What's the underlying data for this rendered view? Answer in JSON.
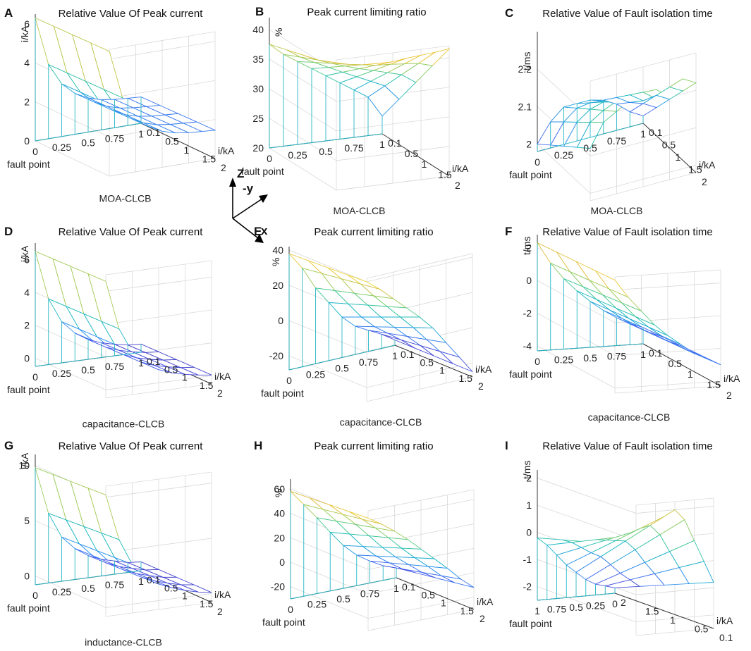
{
  "figure": {
    "legend_axes": {
      "z": "Z",
      "y": "-y",
      "x": "x"
    }
  },
  "chart_data": [
    {
      "id": "A",
      "type": "surface",
      "title": "Relative Value Of Peak current",
      "xlabel": "MOA-CLCB",
      "front_label": "fault point",
      "side_label": "i/kA",
      "zlabel": "i/kA",
      "x_ticks": [
        "0",
        "0.25",
        "0.5",
        "0.75",
        "1"
      ],
      "y_ticks": [
        "2",
        "1.5",
        "1",
        "0.5",
        "0.1"
      ],
      "z_ticks": [
        "0",
        "2",
        "4",
        "6"
      ],
      "z_range": [
        0,
        6.5
      ],
      "fault_point": [
        0,
        0.125,
        0.25,
        0.375,
        0.5,
        0.625,
        0.75,
        0.875,
        1
      ],
      "current": [
        0.1,
        0.6,
        1.1,
        1.6,
        2
      ],
      "front_profile": [
        6.3,
        3.8,
        2.7,
        2.1,
        1.75,
        1.55,
        1.45,
        1.4,
        1.35
      ],
      "back_profile": [
        6.4,
        3.9,
        2.8,
        2.2,
        1.85,
        1.65,
        1.55,
        1.5,
        1.45
      ]
    },
    {
      "id": "B",
      "type": "surface",
      "title": "Peak current limiting ratio",
      "xlabel": "MOA-CLCB",
      "front_label": "fault point",
      "side_label": "i/kA",
      "zlabel": "%",
      "x_ticks": [
        "0",
        "0.25",
        "0.5",
        "0.75",
        "1"
      ],
      "y_ticks": [
        "2",
        "1.5",
        "1",
        "0.5",
        "0.1"
      ],
      "z_ticks": [
        "20",
        "25",
        "30",
        "35",
        "40"
      ],
      "z_range": [
        20,
        42
      ],
      "fault_point": [
        0,
        0.125,
        0.25,
        0.375,
        0.5,
        0.625,
        0.75,
        0.875,
        1
      ],
      "current": [
        0.1,
        0.6,
        1.1,
        1.6,
        2
      ],
      "front_profile": [
        37.5,
        35.5,
        34,
        32.5,
        31,
        29.5,
        28,
        26.5,
        23
      ],
      "back_profile": [
        41,
        40.8,
        40.5,
        40.5,
        40.5,
        40.8,
        41,
        41.2,
        41.5
      ]
    },
    {
      "id": "C",
      "type": "surface",
      "title": "Relative Value of Fault isolation time",
      "xlabel": "MOA-CLCB",
      "front_label": "fault point",
      "side_label": "i/kA",
      "zlabel": "t/ms",
      "x_ticks": [
        "0",
        "0.25",
        "0.5",
        "0.75",
        "1"
      ],
      "y_ticks": [
        "2",
        "1.5",
        "1",
        "0.5",
        "0.1"
      ],
      "z_ticks": [
        "2",
        "2.1",
        "2.2"
      ],
      "z_range": [
        1.98,
        2.3
      ],
      "fault_point": [
        0,
        0.125,
        0.25,
        0.375,
        0.5,
        0.625,
        0.75,
        0.875,
        1
      ],
      "current": [
        0.1,
        0.6,
        1.1,
        1.6,
        2
      ],
      "front_profile": [
        2.0,
        2.05,
        2.08,
        2.08,
        2.08,
        2.07,
        2.05,
        2.02,
        2.0
      ],
      "back_profile": [
        2.12,
        2.18,
        2.2,
        2.22,
        2.2,
        2.23,
        2.2,
        2.24,
        2.22
      ]
    },
    {
      "id": "D",
      "type": "surface",
      "title": "Relative Value Of Peak current",
      "xlabel": "capacitance-CLCB",
      "front_label": "fault point",
      "side_label": "i/kA",
      "zlabel": "i/kA",
      "x_ticks": [
        "0",
        "0.25",
        "0.5",
        "0.75",
        "1"
      ],
      "y_ticks": [
        "2",
        "1.5",
        "1",
        "0.5",
        "0.1"
      ],
      "z_ticks": [
        "0",
        "2",
        "4",
        "6"
      ],
      "z_range": [
        -0.5,
        7
      ],
      "fault_point": [
        0,
        0.125,
        0.25,
        0.375,
        0.5,
        0.625,
        0.75,
        0.875,
        1
      ],
      "current": [
        0.1,
        0.6,
        1.1,
        1.6,
        2
      ],
      "front_profile": [
        6.5,
        3.5,
        2.0,
        1.2,
        0.7,
        0.4,
        0.2,
        0.05,
        0
      ],
      "back_profile": [
        6.6,
        3.6,
        2.1,
        1.3,
        0.8,
        0.5,
        0.3,
        0.15,
        0.05
      ]
    },
    {
      "id": "E",
      "type": "surface",
      "title": "Peak current limiting ratio",
      "xlabel": "capacitance-CLCB",
      "front_label": "fault point",
      "side_label": "i/kA",
      "zlabel": "%",
      "x_ticks": [
        "0",
        "0.25",
        "0.5",
        "0.75",
        "1"
      ],
      "y_ticks": [
        "2",
        "1.5",
        "1",
        "0.5",
        "0.1"
      ],
      "z_ticks": [
        "-20",
        "0",
        "20",
        "40"
      ],
      "z_range": [
        -28,
        42
      ],
      "fault_point": [
        0,
        0.125,
        0.25,
        0.375,
        0.5,
        0.625,
        0.75,
        0.875,
        1
      ],
      "current": [
        0.1,
        0.6,
        1.1,
        1.6,
        2
      ],
      "front_profile": [
        38,
        28,
        15,
        5,
        -5,
        -12,
        -16,
        -20,
        -25
      ],
      "back_profile": [
        40,
        34,
        27,
        20,
        13,
        5,
        -5,
        -15,
        -25
      ]
    },
    {
      "id": "F",
      "type": "surface",
      "title": "Relative Value of Fault isolation time",
      "xlabel": "capacitance-CLCB",
      "front_label": "fault point",
      "side_label": "i/kA",
      "zlabel": "t/ms",
      "x_ticks": [
        "0",
        "0.25",
        "0.5",
        "0.75",
        "1"
      ],
      "y_ticks": [
        "2",
        "1.5",
        "1",
        "0.5",
        "0.1"
      ],
      "z_ticks": [
        "-4",
        "-2",
        "0",
        "2"
      ],
      "z_range": [
        -4.3,
        2.8
      ],
      "fault_point": [
        0,
        0.125,
        0.25,
        0.375,
        0.5,
        0.625,
        0.75,
        0.875,
        1
      ],
      "current": [
        0.1,
        0.6,
        1.1,
        1.6,
        2
      ],
      "front_profile": [
        2.3,
        1.0,
        0,
        -0.8,
        -1.5,
        -2.1,
        -2.6,
        -3.0,
        -3.3
      ],
      "back_profile": [
        2.6,
        1.5,
        0.6,
        -0.3,
        -1.0,
        -1.6,
        -2.2,
        -2.6,
        -3.0
      ]
    },
    {
      "id": "G",
      "type": "surface",
      "title": "Relative Value Of Peak current",
      "xlabel": "inductance-CLCB",
      "front_label": "fault point",
      "side_label": "i/kA",
      "zlabel": "i/kA",
      "x_ticks": [
        "0",
        "0.25",
        "0.5",
        "0.75",
        "1"
      ],
      "y_ticks": [
        "2",
        "1.5",
        "1",
        "0.5",
        "0.1"
      ],
      "z_ticks": [
        "0",
        "5",
        "10"
      ],
      "z_range": [
        -0.8,
        11
      ],
      "fault_point": [
        0,
        0.125,
        0.25,
        0.375,
        0.5,
        0.625,
        0.75,
        0.875,
        1
      ],
      "current": [
        0.1,
        0.6,
        1.1,
        1.6,
        2
      ],
      "front_profile": [
        9.8,
        5.5,
        3.2,
        2.0,
        1.2,
        0.7,
        0.4,
        0.1,
        0
      ],
      "back_profile": [
        10.2,
        6.0,
        3.6,
        2.3,
        1.5,
        1.0,
        0.6,
        0.3,
        0.1
      ]
    },
    {
      "id": "H",
      "type": "surface",
      "title": "Peak current limiting ratio",
      "xlabel": "inductance-CLCB",
      "front_label": "fault point",
      "side_label": "i/kA",
      "zlabel": "%",
      "x_ticks": [
        "0",
        "0.25",
        "0.5",
        "0.75",
        "1"
      ],
      "y_ticks": [
        "2",
        "1.5",
        "1",
        "0.5",
        "0.1"
      ],
      "z_ticks": [
        "-20",
        "0",
        "20",
        "40",
        "60"
      ],
      "z_range": [
        -30,
        68
      ],
      "fault_point": [
        0,
        0.125,
        0.25,
        0.375,
        0.5,
        0.625,
        0.75,
        0.875,
        1
      ],
      "current": [
        0.1,
        0.6,
        1.1,
        1.6,
        2
      ],
      "front_profile": [
        58,
        45,
        32,
        18,
        5,
        -5,
        -12,
        -18,
        -22
      ],
      "back_profile": [
        62,
        55,
        47,
        38,
        28,
        18,
        8,
        -3,
        -12
      ]
    },
    {
      "id": "I",
      "type": "surface",
      "title": "Relative Value of Fault isolation time",
      "xlabel": "inductance-CLCB",
      "front_label": "fault point",
      "side_label": "i/kA",
      "zlabel": "t/ms",
      "x_ticks": [
        "1",
        "0.75",
        "0.5",
        "0.25",
        "0"
      ],
      "y_ticks": [
        "0.1",
        "0.5",
        "1",
        "1.5",
        "2"
      ],
      "z_ticks": [
        "-2",
        "-1",
        "0",
        "1",
        "2"
      ],
      "z_range": [
        -2.5,
        2.3
      ],
      "fault_point": [
        1,
        0.875,
        0.75,
        0.625,
        0.5,
        0.375,
        0.25,
        0.125,
        0
      ],
      "current": [
        0.1,
        0.6,
        1.1,
        1.6,
        2
      ],
      "front_profile": [
        -0.2,
        -0.5,
        -0.9,
        -1.3,
        -1.6,
        -1.9,
        -2.1,
        -2.2,
        -2.3
      ],
      "back_profile": [
        0.8,
        1.2,
        1.5,
        1.8,
        2.0,
        1.6,
        0.8,
        0.0,
        -0.8
      ]
    }
  ]
}
